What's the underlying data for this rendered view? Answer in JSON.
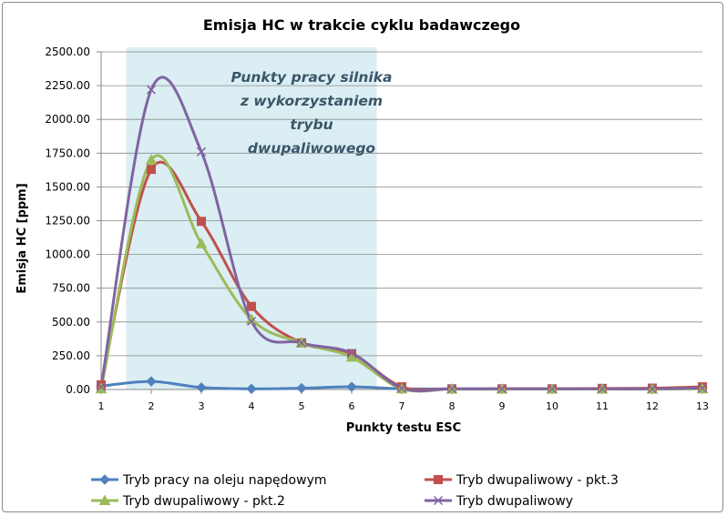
{
  "chart_data": {
    "type": "line",
    "title": "Emisja HC w trakcie cyklu badawczego",
    "xlabel": "Punkty testu ESC",
    "ylabel": "Emisja HC [ppm]",
    "x": [
      1,
      2,
      3,
      4,
      5,
      6,
      7,
      8,
      9,
      10,
      11,
      12,
      13
    ],
    "x_tick_labels": [
      "1",
      "2",
      "3",
      "4",
      "5",
      "6",
      "7",
      "8",
      "9",
      "10",
      "11",
      "12",
      "13"
    ],
    "ylim": [
      0,
      2500
    ],
    "y_tick_labels": [
      "0.00",
      "250.00",
      "500.00",
      "750.00",
      "1000.00",
      "1250.00",
      "1500.00",
      "1750.00",
      "2000.00",
      "2250.00",
      "2500.00"
    ],
    "y_ticks": [
      0,
      250,
      500,
      750,
      1000,
      1250,
      1500,
      1750,
      2000,
      2250,
      2500
    ],
    "grid": "horizontal",
    "legend_position": "bottom",
    "annotation": {
      "lines": [
        "Punkty pracy silnika",
        "z wykorzystaniem",
        "trybu",
        "dwupaliwowego"
      ],
      "x_range": [
        1.5,
        6.5
      ],
      "color": "#daeef3"
    },
    "series": [
      {
        "name": "Tryb pracy na oleju napędowym",
        "color": "#4f81bd",
        "marker": "diamond",
        "values": [
          25,
          60,
          15,
          5,
          10,
          20,
          5,
          5,
          5,
          5,
          5,
          5,
          10
        ]
      },
      {
        "name": "Tryb dwupaliwowy - pkt.3",
        "color": "#c0504d",
        "marker": "square",
        "values": [
          35,
          1630,
          1245,
          615,
          345,
          265,
          20,
          5,
          5,
          5,
          8,
          10,
          20
        ]
      },
      {
        "name": "Tryb dwupaliwowy - pkt.2",
        "color": "#9bbb59",
        "marker": "triangle",
        "values": [
          5,
          1700,
          1080,
          520,
          345,
          240,
          5,
          3,
          3,
          3,
          3,
          3,
          5
        ]
      },
      {
        "name": "Tryb dwupaliwowy",
        "color": "#8064a2",
        "marker": "x",
        "values": [
          20,
          2220,
          1760,
          505,
          345,
          270,
          10,
          5,
          5,
          5,
          5,
          5,
          10
        ]
      }
    ]
  }
}
